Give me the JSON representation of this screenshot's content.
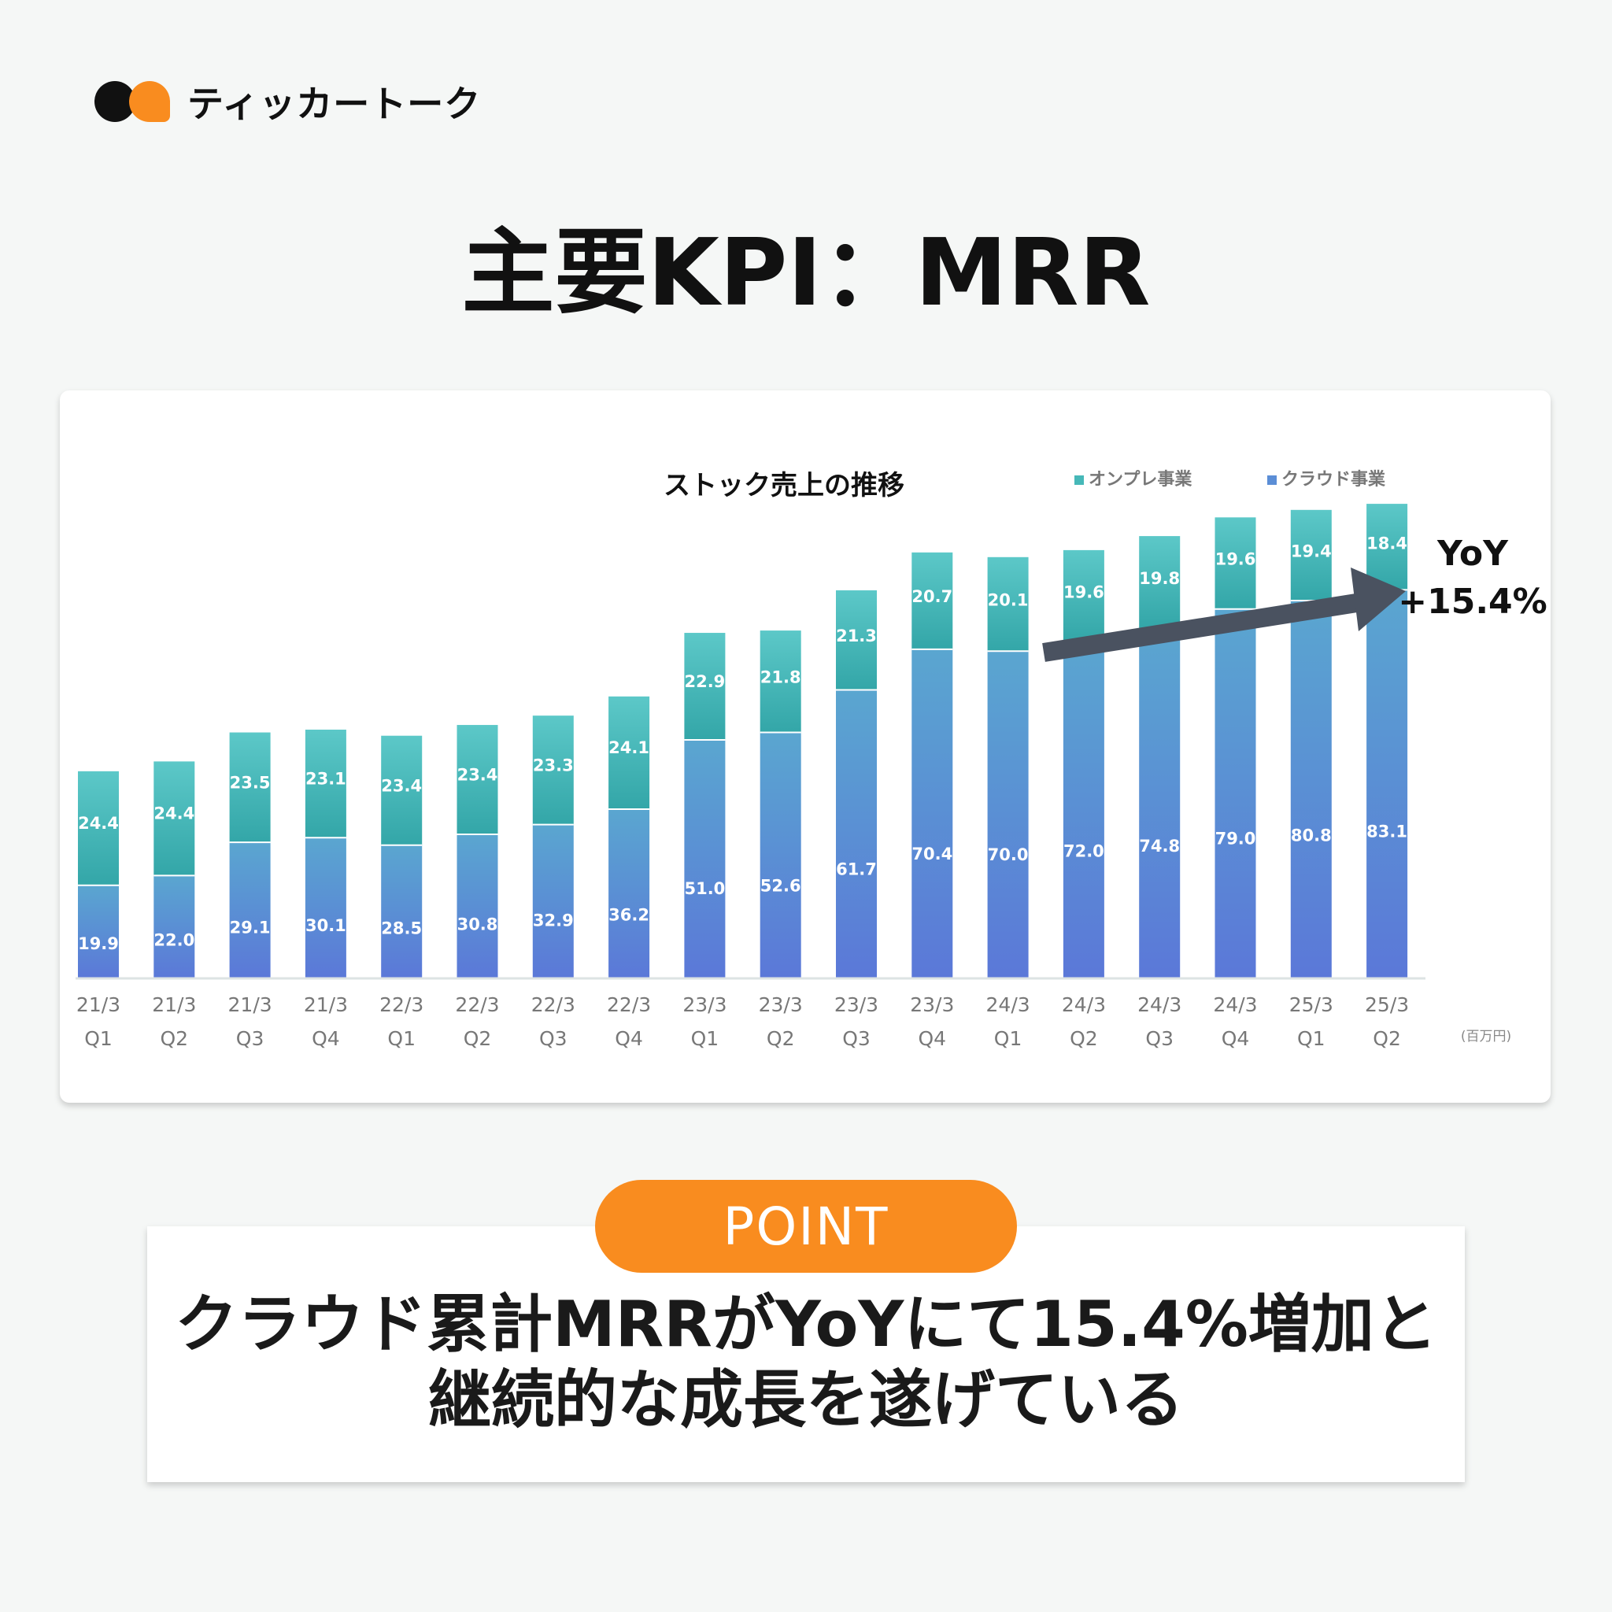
{
  "brand": {
    "name": "ティッカートーク"
  },
  "page_title": "主要KPI：MRR",
  "chart_data": {
    "type": "bar",
    "stacked": true,
    "title": "ストック売上の推移",
    "unit": "(百万円)",
    "categories": [
      [
        "21/3",
        "Q1"
      ],
      [
        "21/3",
        "Q2"
      ],
      [
        "21/3",
        "Q3"
      ],
      [
        "21/3",
        "Q4"
      ],
      [
        "22/3",
        "Q1"
      ],
      [
        "22/3",
        "Q2"
      ],
      [
        "22/3",
        "Q3"
      ],
      [
        "22/3",
        "Q4"
      ],
      [
        "23/3",
        "Q1"
      ],
      [
        "23/3",
        "Q2"
      ],
      [
        "23/3",
        "Q3"
      ],
      [
        "23/3",
        "Q4"
      ],
      [
        "24/3",
        "Q1"
      ],
      [
        "24/3",
        "Q2"
      ],
      [
        "24/3",
        "Q3"
      ],
      [
        "24/3",
        "Q4"
      ],
      [
        "25/3",
        "Q1"
      ],
      [
        "25/3",
        "Q2"
      ]
    ],
    "series": [
      {
        "name": "クラウド事業",
        "color": "#5b8ed6",
        "values": [
          19.9,
          22.0,
          29.1,
          30.1,
          28.5,
          30.8,
          32.9,
          36.2,
          51.0,
          52.6,
          61.7,
          70.4,
          70.0,
          72.0,
          74.8,
          79.0,
          80.8,
          83.1
        ]
      },
      {
        "name": "オンプレ事業",
        "color": "#46b8b8",
        "values": [
          24.4,
          24.4,
          23.5,
          23.1,
          23.4,
          23.4,
          23.3,
          24.1,
          22.9,
          21.8,
          21.3,
          20.7,
          20.1,
          19.6,
          19.8,
          19.6,
          19.4,
          18.4
        ]
      }
    ],
    "legend": [
      "オンプレ事業",
      "クラウド事業"
    ],
    "legend_position": "top-right",
    "annotation": {
      "line1": "YoY",
      "line2": "+15.4%"
    },
    "ylim": [
      0,
      105
    ]
  },
  "point": {
    "label": "POINT",
    "lines": [
      "クラウド累計MRRがYoYにて15.4%増加と",
      "継続的な成長を遂げている"
    ]
  }
}
